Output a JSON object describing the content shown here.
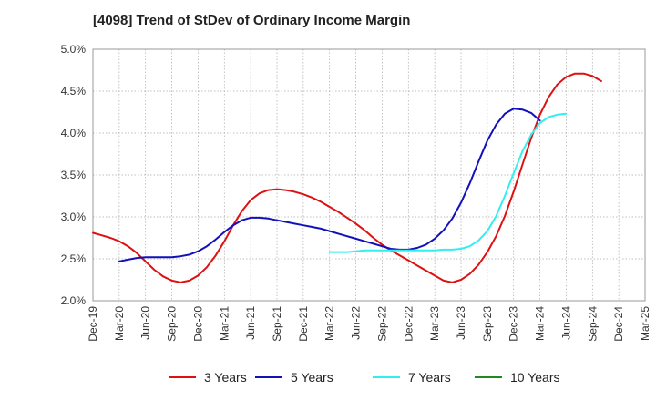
{
  "chart_data": {
    "type": "line",
    "title": "[4098]  Trend of StDev of Ordinary Income Margin",
    "xlabel": "",
    "ylabel": "",
    "grid": true,
    "legend_position": "bottom",
    "x_ticks": [
      "Dec-19",
      "Mar-20",
      "Jun-20",
      "Sep-20",
      "Dec-20",
      "Mar-21",
      "Jun-21",
      "Sep-21",
      "Dec-21",
      "Mar-22",
      "Jun-22",
      "Sep-22",
      "Dec-22",
      "Mar-23",
      "Jun-23",
      "Sep-23",
      "Dec-23",
      "Mar-24",
      "Jun-24",
      "Sep-24",
      "Dec-24",
      "Mar-25"
    ],
    "y_ticks": [
      "2.0%",
      "2.5%",
      "3.0%",
      "3.5%",
      "4.0%",
      "4.5%",
      "5.0%"
    ],
    "ylim": [
      2.0,
      5.0
    ],
    "series": [
      {
        "name": "3 Years",
        "color": "#dd1111",
        "start": "Dec-19",
        "values": [
          2.81,
          2.78,
          2.75,
          2.71,
          2.65,
          2.57,
          2.47,
          2.37,
          2.29,
          2.24,
          2.22,
          2.24,
          2.3,
          2.4,
          2.54,
          2.71,
          2.9,
          3.07,
          3.2,
          3.28,
          3.32,
          3.33,
          3.32,
          3.3,
          3.27,
          3.23,
          3.18,
          3.12,
          3.06,
          2.99,
          2.92,
          2.84,
          2.75,
          2.67,
          2.6,
          2.54,
          2.48,
          2.42,
          2.36,
          2.3,
          2.24,
          2.22,
          2.25,
          2.32,
          2.43,
          2.58,
          2.77,
          3.01,
          3.3,
          3.62,
          3.94,
          4.22,
          4.43,
          4.58,
          4.67,
          4.71,
          4.71,
          4.68,
          4.62
        ]
      },
      {
        "name": "5 Years",
        "color": "#1111bb",
        "start": "Mar-20",
        "values": [
          2.47,
          2.49,
          2.51,
          2.52,
          2.52,
          2.52,
          2.52,
          2.53,
          2.55,
          2.59,
          2.65,
          2.73,
          2.82,
          2.9,
          2.96,
          2.99,
          2.99,
          2.98,
          2.96,
          2.94,
          2.92,
          2.9,
          2.88,
          2.86,
          2.83,
          2.8,
          2.77,
          2.74,
          2.71,
          2.68,
          2.65,
          2.62,
          2.61,
          2.61,
          2.63,
          2.67,
          2.74,
          2.84,
          2.98,
          3.17,
          3.4,
          3.66,
          3.91,
          4.1,
          4.23,
          4.29,
          4.28,
          4.24,
          4.15
        ]
      },
      {
        "name": "7 Years",
        "color": "#33eeee",
        "start": "Mar-22",
        "values": [
          2.58,
          2.58,
          2.58,
          2.59,
          2.6,
          2.6,
          2.6,
          2.6,
          2.6,
          2.6,
          2.6,
          2.6,
          2.6,
          2.61,
          2.61,
          2.62,
          2.65,
          2.72,
          2.83,
          3.01,
          3.25,
          3.52,
          3.78,
          3.98,
          4.12,
          4.19,
          4.22,
          4.23
        ]
      },
      {
        "name": "10 Years",
        "color": "#228822",
        "start": "Mar-25",
        "values": []
      }
    ]
  }
}
